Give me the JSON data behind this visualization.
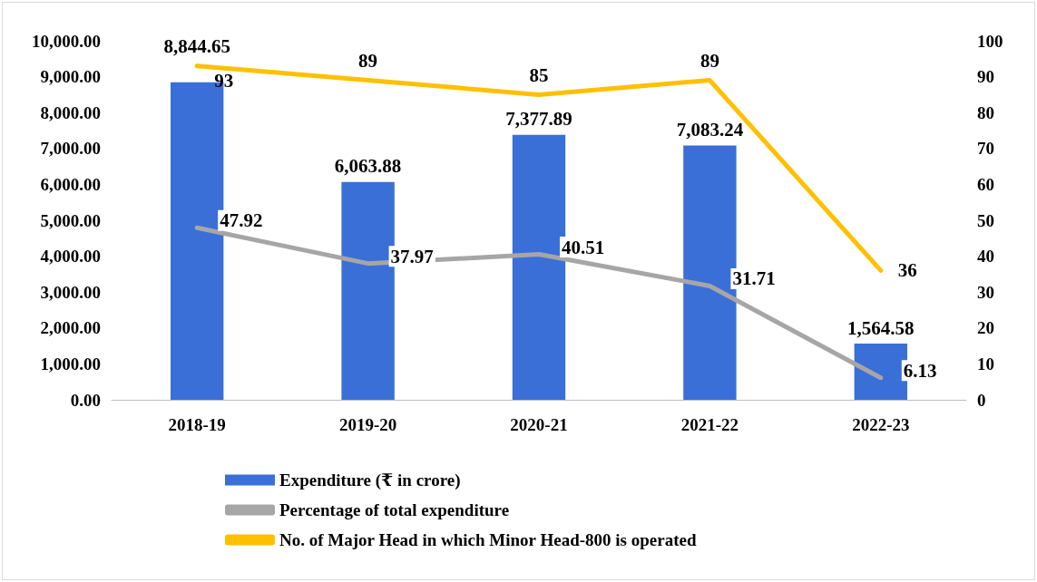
{
  "chart_data": {
    "type": "bar",
    "categories": [
      "2018-19",
      "2019-20",
      "2020-21",
      "2021-22",
      "2022-23"
    ],
    "series": [
      {
        "type": "bar",
        "name": "Expenditure (₹ in crore)",
        "color": "#3a6fd8",
        "values": [
          8844.65,
          6063.88,
          7377.89,
          7083.24,
          1564.58
        ],
        "value_labels": [
          "8,844.65",
          "6,063.88",
          "7,377.89",
          "7,083.24",
          "1,564.58"
        ]
      },
      {
        "type": "line",
        "axis": "y2",
        "name": "Percentage of total expenditure",
        "color": "#a6a6a6",
        "values": [
          47.92,
          37.97,
          40.51,
          31.71,
          6.13
        ],
        "value_labels": [
          "47.92",
          "37.97",
          "40.51",
          "31.71",
          "6.13"
        ]
      },
      {
        "type": "line",
        "axis": "y2",
        "name": "No. of Major Head in which Minor Head-800 is operated",
        "color": "#ffc000",
        "values": [
          93,
          89,
          85,
          89,
          36
        ],
        "value_labels": [
          "93",
          "89",
          "85",
          "89",
          "36"
        ]
      }
    ],
    "ylim": [
      0,
      10000
    ],
    "yticks": [
      {
        "value": 0,
        "label": "0.00"
      },
      {
        "value": 1000,
        "label": "1,000.00"
      },
      {
        "value": 2000,
        "label": "2,000.00"
      },
      {
        "value": 3000,
        "label": "3,000.00"
      },
      {
        "value": 4000,
        "label": "4,000.00"
      },
      {
        "value": 5000,
        "label": "5,000.00"
      },
      {
        "value": 6000,
        "label": "6,000.00"
      },
      {
        "value": 7000,
        "label": "7,000.00"
      },
      {
        "value": 8000,
        "label": "8,000.00"
      },
      {
        "value": 9000,
        "label": "9,000.00"
      },
      {
        "value": 10000,
        "label": "10,000.00"
      }
    ],
    "y2lim": [
      0,
      100
    ],
    "y2ticks": [
      0,
      10,
      20,
      30,
      40,
      50,
      60,
      70,
      80,
      90,
      100
    ],
    "grid": false,
    "legend": "bottom",
    "marker": "none",
    "line_style": "solid"
  }
}
